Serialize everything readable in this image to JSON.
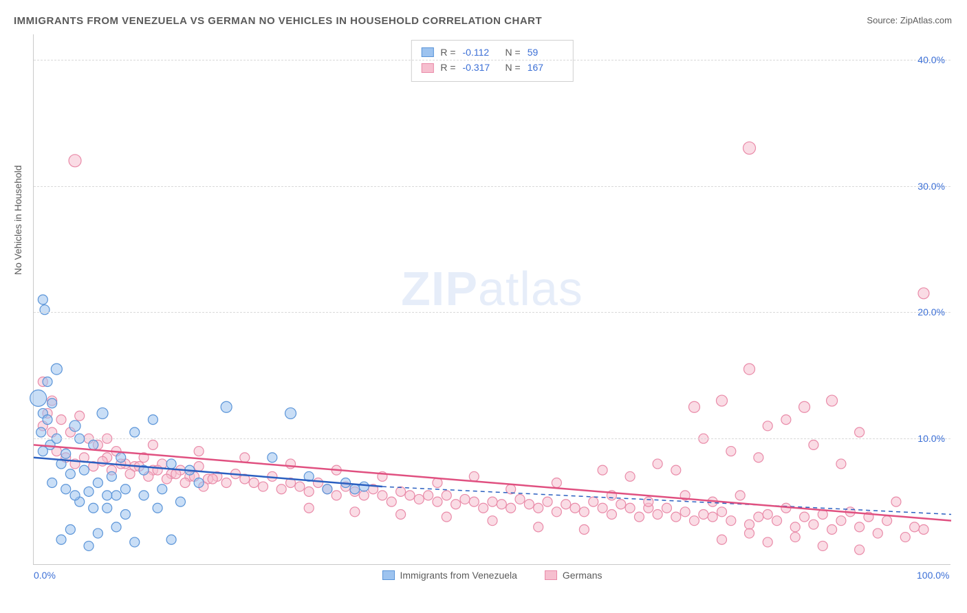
{
  "title": "IMMIGRANTS FROM VENEZUELA VS GERMAN NO VEHICLES IN HOUSEHOLD CORRELATION CHART",
  "source_label": "Source:",
  "source_value": "ZipAtlas.com",
  "ylabel": "No Vehicles in Household",
  "watermark_a": "ZIP",
  "watermark_b": "atlas",
  "chart": {
    "type": "scatter",
    "xlim": [
      0,
      100
    ],
    "ylim": [
      0,
      42
    ],
    "xticks": [
      {
        "v": 0,
        "label": "0.0%"
      },
      {
        "v": 100,
        "label": "100.0%"
      }
    ],
    "yticks": [
      {
        "v": 10,
        "label": "10.0%"
      },
      {
        "v": 20,
        "label": "20.0%"
      },
      {
        "v": 30,
        "label": "30.0%"
      },
      {
        "v": 40,
        "label": "40.0%"
      }
    ],
    "background_color": "#ffffff",
    "grid_color": "#d8d8d8",
    "marker_radius": 8,
    "marker_opacity": 0.55,
    "series": [
      {
        "key": "venezuela",
        "label": "Immigrants from Venezuela",
        "fill": "#9dc3ef",
        "stroke": "#5a94d8",
        "line_color": "#2a5fc0",
        "R": "-0.112",
        "N": "59",
        "reg": {
          "x1": 0,
          "y1": 8.5,
          "x2": 38,
          "y2": 6.2,
          "solid": true,
          "ext_x2": 100,
          "ext_y2": 4.0
        },
        "points": [
          [
            0.5,
            13.2,
            12
          ],
          [
            1.0,
            21.0,
            7
          ],
          [
            1.2,
            20.2,
            7
          ],
          [
            1.0,
            12.0,
            7
          ],
          [
            1.5,
            11.5,
            7
          ],
          [
            2.0,
            12.8,
            7
          ],
          [
            2.5,
            15.5,
            8
          ],
          [
            3.0,
            8.0,
            7
          ],
          [
            3.5,
            8.8,
            7
          ],
          [
            4.0,
            7.2,
            7
          ],
          [
            4.5,
            11.0,
            8
          ],
          [
            5.0,
            10.0,
            7
          ],
          [
            5.5,
            7.5,
            7
          ],
          [
            6.0,
            5.8,
            7
          ],
          [
            6.5,
            9.5,
            7
          ],
          [
            7.0,
            6.5,
            7
          ],
          [
            7.5,
            12.0,
            8
          ],
          [
            8.0,
            4.5,
            7
          ],
          [
            8.5,
            7.0,
            7
          ],
          [
            9.0,
            5.5,
            7
          ],
          [
            9.5,
            8.5,
            7
          ],
          [
            10.0,
            6.0,
            7
          ],
          [
            11.0,
            10.5,
            7
          ],
          [
            12.0,
            7.5,
            7
          ],
          [
            13.0,
            11.5,
            7
          ],
          [
            14.0,
            6.0,
            7
          ],
          [
            15.0,
            8.0,
            7
          ],
          [
            16.0,
            5.0,
            7
          ],
          [
            17.0,
            7.5,
            7
          ],
          [
            18.0,
            6.5,
            7
          ],
          [
            21.0,
            12.5,
            8
          ],
          [
            26.0,
            8.5,
            7
          ],
          [
            28.0,
            12.0,
            8
          ],
          [
            30.0,
            7.0,
            7
          ],
          [
            32.0,
            6.0,
            7
          ],
          [
            34.0,
            6.5,
            7
          ],
          [
            35.0,
            6.0,
            7
          ],
          [
            36.0,
            6.2,
            7
          ],
          [
            3.0,
            2.0,
            7
          ],
          [
            4.0,
            2.8,
            7
          ],
          [
            6.0,
            1.5,
            7
          ],
          [
            7.0,
            2.5,
            7
          ],
          [
            9.0,
            3.0,
            7
          ],
          [
            11.0,
            1.8,
            7
          ],
          [
            15.0,
            2.0,
            7
          ],
          [
            5.0,
            5.0,
            7
          ],
          [
            6.5,
            4.5,
            7
          ],
          [
            8.0,
            5.5,
            7
          ],
          [
            10.0,
            4.0,
            7
          ],
          [
            12.0,
            5.5,
            7
          ],
          [
            13.5,
            4.5,
            7
          ],
          [
            2.0,
            6.5,
            7
          ],
          [
            3.5,
            6.0,
            7
          ],
          [
            4.5,
            5.5,
            7
          ],
          [
            1.0,
            9.0,
            7
          ],
          [
            1.8,
            9.5,
            7
          ],
          [
            0.8,
            10.5,
            7
          ],
          [
            2.5,
            10.0,
            7
          ],
          [
            1.5,
            14.5,
            7
          ]
        ]
      },
      {
        "key": "germans",
        "label": "Germans",
        "fill": "#f6bfcf",
        "stroke": "#e98aa8",
        "line_color": "#e05080",
        "R": "-0.317",
        "N": "167",
        "reg": {
          "x1": 0,
          "y1": 9.5,
          "x2": 100,
          "y2": 3.5,
          "solid": true
        },
        "points": [
          [
            4.5,
            32.0,
            9
          ],
          [
            78.0,
            33.0,
            9
          ],
          [
            1.0,
            14.5,
            7
          ],
          [
            2.0,
            13.0,
            7
          ],
          [
            3.0,
            11.5,
            7
          ],
          [
            4.0,
            10.5,
            7
          ],
          [
            5.0,
            11.8,
            7
          ],
          [
            6.0,
            10.0,
            7
          ],
          [
            7.0,
            9.5,
            7
          ],
          [
            8.0,
            8.5,
            7
          ],
          [
            9.0,
            9.0,
            7
          ],
          [
            10.0,
            8.0,
            7
          ],
          [
            11.0,
            7.8,
            7
          ],
          [
            12.0,
            8.5,
            7
          ],
          [
            13.0,
            7.5,
            7
          ],
          [
            14.0,
            8.0,
            7
          ],
          [
            15.0,
            7.2,
            7
          ],
          [
            16.0,
            7.5,
            7
          ],
          [
            17.0,
            7.0,
            7
          ],
          [
            18.0,
            7.8,
            7
          ],
          [
            19.0,
            6.8,
            7
          ],
          [
            20.0,
            7.0,
            7
          ],
          [
            21.0,
            6.5,
            7
          ],
          [
            22.0,
            7.2,
            7
          ],
          [
            23.0,
            6.8,
            7
          ],
          [
            24.0,
            6.5,
            7
          ],
          [
            25.0,
            6.2,
            7
          ],
          [
            26.0,
            7.0,
            7
          ],
          [
            27.0,
            6.0,
            7
          ],
          [
            28.0,
            6.5,
            7
          ],
          [
            29.0,
            6.2,
            7
          ],
          [
            30.0,
            5.8,
            7
          ],
          [
            31.0,
            6.5,
            7
          ],
          [
            32.0,
            6.0,
            7
          ],
          [
            33.0,
            5.5,
            7
          ],
          [
            34.0,
            6.2,
            7
          ],
          [
            35.0,
            5.8,
            7
          ],
          [
            36.0,
            5.5,
            7
          ],
          [
            37.0,
            6.0,
            7
          ],
          [
            38.0,
            5.5,
            7
          ],
          [
            39.0,
            5.0,
            7
          ],
          [
            40.0,
            5.8,
            7
          ],
          [
            41.0,
            5.5,
            7
          ],
          [
            42.0,
            5.2,
            7
          ],
          [
            43.0,
            5.5,
            7
          ],
          [
            44.0,
            5.0,
            7
          ],
          [
            45.0,
            5.5,
            7
          ],
          [
            46.0,
            4.8,
            7
          ],
          [
            47.0,
            5.2,
            7
          ],
          [
            48.0,
            5.0,
            7
          ],
          [
            49.0,
            4.5,
            7
          ],
          [
            50.0,
            5.0,
            7
          ],
          [
            51.0,
            4.8,
            7
          ],
          [
            52.0,
            4.5,
            7
          ],
          [
            53.0,
            5.2,
            7
          ],
          [
            54.0,
            4.8,
            7
          ],
          [
            55.0,
            4.5,
            7
          ],
          [
            56.0,
            5.0,
            7
          ],
          [
            57.0,
            4.2,
            7
          ],
          [
            58.0,
            4.8,
            7
          ],
          [
            59.0,
            4.5,
            7
          ],
          [
            60.0,
            4.2,
            7
          ],
          [
            61.0,
            5.0,
            7
          ],
          [
            62.0,
            4.5,
            7
          ],
          [
            63.0,
            4.0,
            7
          ],
          [
            64.0,
            4.8,
            7
          ],
          [
            65.0,
            4.5,
            7
          ],
          [
            66.0,
            3.8,
            7
          ],
          [
            67.0,
            4.5,
            7
          ],
          [
            68.0,
            4.0,
            7
          ],
          [
            69.0,
            4.5,
            7
          ],
          [
            70.0,
            3.8,
            7
          ],
          [
            71.0,
            4.2,
            7
          ],
          [
            72.0,
            3.5,
            7
          ],
          [
            73.0,
            4.0,
            7
          ],
          [
            74.0,
            3.8,
            7
          ],
          [
            75.0,
            4.2,
            7
          ],
          [
            76.0,
            3.5,
            7
          ],
          [
            77.0,
            5.5,
            7
          ],
          [
            78.0,
            3.2,
            7
          ],
          [
            79.0,
            3.8,
            7
          ],
          [
            80.0,
            4.0,
            7
          ],
          [
            81.0,
            3.5,
            7
          ],
          [
            82.0,
            4.5,
            7
          ],
          [
            83.0,
            3.0,
            7
          ],
          [
            84.0,
            3.8,
            7
          ],
          [
            85.0,
            3.2,
            7
          ],
          [
            86.0,
            4.0,
            7
          ],
          [
            87.0,
            2.8,
            7
          ],
          [
            88.0,
            3.5,
            7
          ],
          [
            89.0,
            4.2,
            7
          ],
          [
            90.0,
            3.0,
            7
          ],
          [
            91.0,
            3.8,
            7
          ],
          [
            92.0,
            2.5,
            7
          ],
          [
            93.0,
            3.5,
            7
          ],
          [
            94.0,
            5.0,
            7
          ],
          [
            95.0,
            2.2,
            7
          ],
          [
            96.0,
            3.0,
            7
          ],
          [
            97.0,
            2.8,
            7
          ],
          [
            62.0,
            7.5,
            7
          ],
          [
            65.0,
            7.0,
            7
          ],
          [
            68.0,
            8.0,
            7
          ],
          [
            70.0,
            7.5,
            7
          ],
          [
            72.0,
            12.5,
            8
          ],
          [
            73.0,
            10.0,
            7
          ],
          [
            75.0,
            13.0,
            8
          ],
          [
            76.0,
            9.0,
            7
          ],
          [
            78.0,
            15.5,
            8
          ],
          [
            79.0,
            8.5,
            7
          ],
          [
            80.0,
            11.0,
            7
          ],
          [
            82.0,
            11.5,
            7
          ],
          [
            84.0,
            12.5,
            8
          ],
          [
            85.0,
            9.5,
            7
          ],
          [
            87.0,
            13.0,
            8
          ],
          [
            88.0,
            8.0,
            7
          ],
          [
            90.0,
            10.5,
            7
          ],
          [
            75.0,
            2.0,
            7
          ],
          [
            78.0,
            2.5,
            7
          ],
          [
            80.0,
            1.8,
            7
          ],
          [
            83.0,
            2.2,
            7
          ],
          [
            86.0,
            1.5,
            7
          ],
          [
            90.0,
            1.2,
            7
          ],
          [
            60.0,
            2.8,
            7
          ],
          [
            55.0,
            3.0,
            7
          ],
          [
            50.0,
            3.5,
            7
          ],
          [
            45.0,
            3.8,
            7
          ],
          [
            40.0,
            4.0,
            7
          ],
          [
            35.0,
            4.2,
            7
          ],
          [
            30.0,
            4.5,
            7
          ],
          [
            2.5,
            9.0,
            7
          ],
          [
            3.5,
            8.5,
            7
          ],
          [
            4.5,
            8.0,
            7
          ],
          [
            5.5,
            8.5,
            7
          ],
          [
            6.5,
            7.8,
            7
          ],
          [
            7.5,
            8.2,
            7
          ],
          [
            8.5,
            7.5,
            7
          ],
          [
            9.5,
            8.0,
            7
          ],
          [
            10.5,
            7.2,
            7
          ],
          [
            11.5,
            7.8,
            7
          ],
          [
            12.5,
            7.0,
            7
          ],
          [
            13.5,
            7.5,
            7
          ],
          [
            14.5,
            6.8,
            7
          ],
          [
            15.5,
            7.2,
            7
          ],
          [
            16.5,
            6.5,
            7
          ],
          [
            17.5,
            7.0,
            7
          ],
          [
            18.5,
            6.2,
            7
          ],
          [
            19.5,
            6.8,
            7
          ],
          [
            1.5,
            12.0,
            7
          ],
          [
            2.0,
            10.5,
            7
          ],
          [
            1.0,
            11.0,
            7
          ],
          [
            97.0,
            21.5,
            8
          ],
          [
            57.0,
            6.5,
            7
          ],
          [
            48.0,
            7.0,
            7
          ],
          [
            52.0,
            6.0,
            7
          ],
          [
            44.0,
            6.5,
            7
          ],
          [
            38.0,
            7.0,
            7
          ],
          [
            33.0,
            7.5,
            7
          ],
          [
            28.0,
            8.0,
            7
          ],
          [
            23.0,
            8.5,
            7
          ],
          [
            18.0,
            9.0,
            7
          ],
          [
            13.0,
            9.5,
            7
          ],
          [
            8.0,
            10.0,
            7
          ],
          [
            63.0,
            5.5,
            7
          ],
          [
            67.0,
            5.0,
            7
          ],
          [
            71.0,
            5.5,
            7
          ],
          [
            74.0,
            5.0,
            7
          ]
        ]
      }
    ]
  }
}
